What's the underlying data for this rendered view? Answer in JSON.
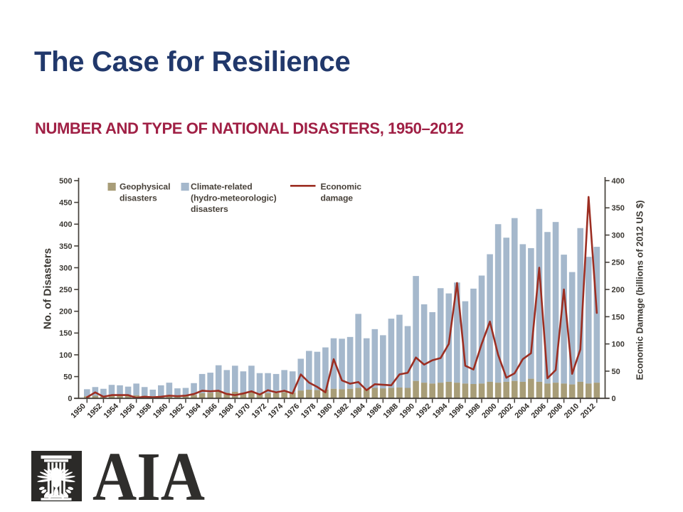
{
  "slide": {
    "title": "The Case for Resilience",
    "subtitle": "NUMBER AND TYPE OF NATIONAL DISASTERS, 1950–2012",
    "title_color": "#21386b",
    "subtitle_color": "#a02045",
    "background_color": "#ffffff"
  },
  "logo": {
    "text": "AIA",
    "emblem_icon": "aia-eagle-column-emblem",
    "square_color": "#2b2a28",
    "text_color": "#2f2e2c"
  },
  "chart_data": {
    "type": "bar",
    "subtype": "stacked-bars-with-line-overlay",
    "title": "",
    "x": [
      1950,
      1951,
      1952,
      1953,
      1954,
      1955,
      1956,
      1957,
      1958,
      1959,
      1960,
      1961,
      1962,
      1963,
      1964,
      1965,
      1966,
      1967,
      1968,
      1969,
      1970,
      1971,
      1972,
      1973,
      1974,
      1975,
      1976,
      1977,
      1978,
      1979,
      1980,
      1981,
      1982,
      1983,
      1984,
      1985,
      1986,
      1987,
      1988,
      1989,
      1990,
      1991,
      1992,
      1993,
      1994,
      1995,
      1996,
      1997,
      1998,
      1999,
      2000,
      2001,
      2002,
      2003,
      2004,
      2005,
      2006,
      2007,
      2008,
      2009,
      2010,
      2011,
      2012
    ],
    "series": [
      {
        "name": "Geophysical disasters",
        "type": "bar",
        "stack": true,
        "axis": "left",
        "color": "#a89d78",
        "values": [
          5,
          6,
          5,
          7,
          6,
          6,
          7,
          6,
          5,
          6,
          8,
          6,
          6,
          8,
          12,
          13,
          15,
          13,
          15,
          13,
          15,
          12,
          12,
          12,
          14,
          13,
          18,
          20,
          19,
          20,
          22,
          21,
          22,
          24,
          22,
          24,
          23,
          24,
          25,
          24,
          40,
          36,
          34,
          36,
          38,
          36,
          34,
          33,
          34,
          38,
          36,
          38,
          40,
          38,
          45,
          38,
          34,
          36,
          34,
          32,
          38,
          34,
          36
        ]
      },
      {
        "name": "Climate-related (hydro-meteorologic) disasters",
        "type": "bar",
        "stack": true,
        "axis": "left",
        "color": "#a5b8cc",
        "values": [
          16,
          20,
          17,
          24,
          24,
          21,
          27,
          20,
          15,
          24,
          28,
          17,
          18,
          27,
          44,
          46,
          61,
          52,
          60,
          49,
          60,
          46,
          46,
          44,
          51,
          49,
          73,
          89,
          88,
          97,
          116,
          116,
          119,
          170,
          116,
          135,
          122,
          159,
          167,
          142,
          241,
          180,
          164,
          217,
          203,
          230,
          189,
          219,
          248,
          293,
          364,
          331,
          374,
          316,
          300,
          397,
          348,
          369,
          296,
          258,
          353,
          291,
          312
        ]
      },
      {
        "name": "Economic damage",
        "type": "line",
        "stack": false,
        "axis": "right",
        "color": "#9c2d22",
        "values": [
          2,
          11,
          3,
          6,
          6,
          6,
          1,
          3,
          2,
          3,
          5,
          4,
          5,
          8,
          14,
          13,
          14,
          8,
          6,
          9,
          13,
          7,
          15,
          11,
          14,
          9,
          44,
          29,
          21,
          11,
          72,
          33,
          27,
          30,
          15,
          26,
          25,
          24,
          44,
          47,
          75,
          62,
          70,
          74,
          100,
          212,
          60,
          53,
          100,
          141,
          80,
          38,
          46,
          72,
          83,
          240,
          37,
          52,
          200,
          45,
          90,
          370,
          157
        ]
      }
    ],
    "left_axis": {
      "label": "No. of Disasters",
      "min": 0,
      "max": 500,
      "tick_step": 50
    },
    "right_axis": {
      "label": "Economic Damage (billions of 2012 US $)",
      "min": 0,
      "max": 400,
      "tick_step": 50
    },
    "x_axis": {
      "label": "",
      "tick_every": 2
    },
    "legend": {
      "position": "top-left-inside",
      "entries": [
        {
          "swatch": "square",
          "color": "#a89d78",
          "lines": [
            "Geophysical",
            "disasters"
          ]
        },
        {
          "swatch": "square",
          "color": "#a5b8cc",
          "lines": [
            "Climate-related",
            "(hydro-meteorologic)",
            "disasters"
          ]
        },
        {
          "swatch": "line",
          "color": "#9c2d22",
          "lines": [
            "Economic",
            "damage"
          ]
        }
      ]
    },
    "grid": false,
    "text_color": "#3b3733",
    "axis_color": "#45403a",
    "year_label_color": "#2e2b27",
    "legend_text_color": "#48423a",
    "ylim_left": [
      0,
      500
    ],
    "ylim_right": [
      0,
      400
    ]
  }
}
